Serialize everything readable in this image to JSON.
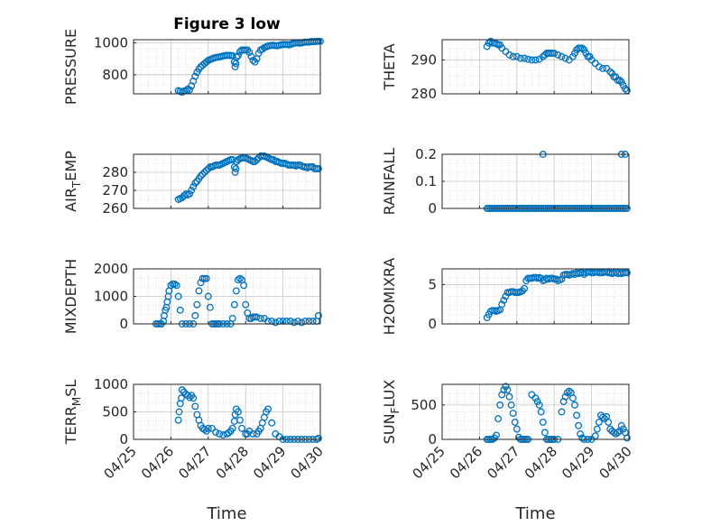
{
  "figure_title": "Figure 3 low",
  "marker_color": "#0072bd",
  "x_tick_labels": [
    "04/25",
    "04/26",
    "04/27",
    "04/28",
    "04/29",
    "04/30"
  ],
  "xlabel": "Time",
  "chart_data": [
    {
      "type": "scatter",
      "title": "Figure 3 low",
      "ylabel": "PRESSURE",
      "xlim": [
        0,
        5
      ],
      "ylim": [
        680,
        1020
      ],
      "yticks": [
        800,
        1000
      ],
      "ytick_labels": [
        "800",
        "1000"
      ],
      "grid": true,
      "x": [
        1.2,
        1.25,
        1.3,
        1.35,
        1.4,
        1.45,
        1.5,
        1.55,
        1.6,
        1.65,
        1.7,
        1.75,
        1.8,
        1.85,
        1.9,
        1.95,
        2.0,
        2.05,
        2.1,
        2.15,
        2.2,
        2.25,
        2.3,
        2.35,
        2.4,
        2.45,
        2.5,
        2.55,
        2.6,
        2.65,
        2.7,
        2.72,
        2.74,
        2.76,
        2.8,
        2.85,
        2.9,
        2.95,
        3.0,
        3.05,
        3.1,
        3.15,
        3.2,
        3.25,
        3.3,
        3.35,
        3.4,
        3.45,
        3.5,
        3.55,
        3.6,
        3.65,
        3.7,
        3.75,
        3.8,
        3.85,
        3.9,
        3.95,
        4.0,
        4.05,
        4.1,
        4.15,
        4.2,
        4.25,
        4.3,
        4.35,
        4.4,
        4.45,
        4.5,
        4.55,
        4.6,
        4.65,
        4.7,
        4.75,
        4.8,
        4.85,
        4.9,
        4.95,
        5.0
      ],
      "y": [
        700,
        695,
        690,
        698,
        700,
        710,
        705,
        730,
        760,
        790,
        815,
        835,
        850,
        860,
        870,
        880,
        890,
        895,
        900,
        905,
        908,
        910,
        912,
        914,
        918,
        920,
        922,
        922,
        921,
        920,
        880,
        850,
        870,
        910,
        920,
        945,
        955,
        955,
        955,
        955,
        940,
        915,
        890,
        880,
        900,
        935,
        955,
        960,
        970,
        975,
        980,
        983,
        985,
        985,
        983,
        982,
        985,
        988,
        990,
        990,
        990,
        988,
        990,
        995,
        998,
        1000,
        1000,
        998,
        1000,
        1003,
        1005,
        1005,
        1005,
        1008,
        1008,
        1008,
        1010,
        1010,
        1010
      ]
    },
    {
      "type": "scatter",
      "ylabel": "THETA",
      "xlim": [
        0,
        5
      ],
      "ylim": [
        280,
        296
      ],
      "yticks": [
        280,
        290
      ],
      "ytick_labels": [
        "280",
        "290"
      ],
      "grid": true,
      "x": [
        1.2,
        1.25,
        1.3,
        1.35,
        1.4,
        1.45,
        1.5,
        1.55,
        1.6,
        1.7,
        1.8,
        1.9,
        2.0,
        2.1,
        2.2,
        2.3,
        2.4,
        2.5,
        2.6,
        2.7,
        2.75,
        2.8,
        2.85,
        2.9,
        2.95,
        3.0,
        3.1,
        3.2,
        3.3,
        3.4,
        3.5,
        3.55,
        3.6,
        3.65,
        3.7,
        3.75,
        3.8,
        3.85,
        3.9,
        3.95,
        4.0,
        4.1,
        4.2,
        4.3,
        4.4,
        4.5,
        4.55,
        4.6,
        4.65,
        4.7,
        4.75,
        4.8,
        4.85,
        4.9,
        4.95
      ],
      "y": [
        294,
        295,
        295.5,
        295,
        295,
        294.8,
        294.5,
        294.5,
        293.5,
        292.5,
        291.5,
        291,
        291,
        290.5,
        290.5,
        290.2,
        290,
        290,
        290.2,
        291,
        291.5,
        292,
        292,
        292,
        292,
        292,
        291.5,
        291,
        290.5,
        290,
        291,
        292,
        293,
        293.5,
        293.5,
        293.5,
        293,
        292,
        291,
        291,
        290,
        289,
        288,
        287.5,
        287.5,
        286.5,
        286,
        285,
        285,
        284,
        284,
        283.5,
        282.5,
        281.5,
        281
      ]
    },
    {
      "type": "scatter",
      "ylabel": "AIR_TEMP",
      "ylabel_main": "AIR",
      "ylabel_sub": "T",
      "ylabel_rest": "EMP",
      "xlim": [
        0,
        5
      ],
      "ylim": [
        260,
        290
      ],
      "yticks": [
        260,
        270,
        280
      ],
      "ytick_labels": [
        "260",
        "270",
        "280"
      ],
      "grid": true,
      "x": [
        1.2,
        1.25,
        1.3,
        1.35,
        1.4,
        1.45,
        1.5,
        1.55,
        1.6,
        1.65,
        1.7,
        1.75,
        1.8,
        1.85,
        1.9,
        1.95,
        2.0,
        2.05,
        2.1,
        2.15,
        2.2,
        2.25,
        2.3,
        2.35,
        2.4,
        2.45,
        2.5,
        2.55,
        2.6,
        2.65,
        2.7,
        2.72,
        2.74,
        2.76,
        2.8,
        2.85,
        2.9,
        2.95,
        3.0,
        3.05,
        3.1,
        3.15,
        3.2,
        3.25,
        3.3,
        3.35,
        3.4,
        3.45,
        3.5,
        3.55,
        3.6,
        3.65,
        3.7,
        3.75,
        3.8,
        3.85,
        3.9,
        3.95,
        4.0,
        4.05,
        4.1,
        4.15,
        4.2,
        4.25,
        4.3,
        4.35,
        4.4,
        4.45,
        4.5,
        4.55,
        4.6,
        4.65,
        4.7,
        4.75,
        4.8,
        4.85,
        4.9,
        4.95
      ],
      "y": [
        265,
        265.5,
        266,
        267,
        268,
        267.5,
        268,
        270,
        272,
        274,
        275,
        276.5,
        278,
        279,
        280,
        281,
        282,
        283,
        283,
        283.5,
        284,
        284,
        284,
        284.5,
        285,
        285.5,
        286,
        286.5,
        287,
        287,
        283,
        280,
        282,
        286,
        287,
        287.5,
        288,
        288,
        288,
        287.5,
        287,
        286.5,
        286,
        286,
        287,
        288,
        289,
        289,
        289,
        288.5,
        288,
        287.5,
        287,
        287,
        286,
        286,
        285.5,
        285,
        285,
        285,
        284.5,
        284,
        284,
        284,
        284,
        283.5,
        284,
        284,
        283.5,
        283,
        283,
        282.5,
        283,
        283,
        283,
        282,
        282,
        282
      ]
    },
    {
      "type": "scatter",
      "ylabel": "RAINFALL",
      "xlim": [
        0,
        5
      ],
      "ylim": [
        0,
        0.2
      ],
      "yticks": [
        0,
        0.1,
        0.2
      ],
      "ytick_labels": [
        "0",
        "0.1",
        "0.2"
      ],
      "grid": true,
      "x": [
        1.2,
        1.25,
        1.3,
        1.35,
        1.4,
        1.45,
        1.5,
        1.55,
        1.6,
        1.65,
        1.7,
        1.75,
        1.8,
        1.85,
        1.9,
        1.95,
        2.0,
        2.05,
        2.1,
        2.15,
        2.2,
        2.25,
        2.3,
        2.35,
        2.4,
        2.45,
        2.5,
        2.55,
        2.6,
        2.65,
        2.7,
        2.75,
        2.8,
        2.85,
        2.9,
        2.95,
        3.0,
        3.05,
        3.1,
        3.15,
        3.2,
        3.25,
        3.3,
        3.35,
        3.4,
        3.45,
        3.5,
        3.55,
        3.6,
        3.65,
        3.7,
        3.75,
        3.8,
        3.85,
        3.9,
        3.95,
        4.0,
        4.05,
        4.1,
        4.15,
        4.2,
        4.25,
        4.3,
        4.35,
        4.4,
        4.45,
        4.5,
        4.55,
        4.6,
        4.65,
        4.7,
        4.75,
        4.8,
        4.85,
        4.9,
        4.95,
        2.7,
        4.8,
        4.9
      ],
      "y": [
        0,
        0,
        0,
        0,
        0,
        0,
        0,
        0,
        0,
        0,
        0,
        0,
        0,
        0,
        0,
        0,
        0,
        0,
        0,
        0,
        0,
        0,
        0,
        0,
        0,
        0,
        0,
        0,
        0,
        0,
        0,
        0,
        0,
        0,
        0,
        0,
        0,
        0,
        0,
        0,
        0,
        0,
        0,
        0,
        0,
        0,
        0,
        0,
        0,
        0,
        0,
        0,
        0,
        0,
        0,
        0,
        0,
        0,
        0,
        0,
        0,
        0,
        0,
        0,
        0,
        0,
        0,
        0,
        0,
        0,
        0,
        0,
        0,
        0,
        0,
        0,
        0.2,
        0.2,
        0.2
      ]
    },
    {
      "type": "scatter",
      "ylabel": "MIXDEPTH",
      "xlim": [
        0,
        5
      ],
      "ylim": [
        0,
        2000
      ],
      "yticks": [
        0,
        1000,
        2000
      ],
      "ytick_labels": [
        "0",
        "1000",
        "2000"
      ],
      "grid": true,
      "x": [
        0.6,
        0.65,
        0.7,
        0.75,
        0.8,
        0.82,
        0.85,
        0.88,
        0.9,
        0.93,
        0.95,
        1.0,
        1.05,
        1.1,
        1.15,
        1.2,
        1.25,
        1.3,
        1.4,
        1.5,
        1.6,
        1.65,
        1.7,
        1.75,
        1.8,
        1.85,
        1.9,
        1.95,
        2.0,
        2.05,
        2.1,
        2.15,
        2.2,
        2.25,
        2.3,
        2.4,
        2.5,
        2.6,
        2.65,
        2.7,
        2.75,
        2.8,
        2.85,
        2.9,
        2.95,
        3.0,
        3.05,
        3.1,
        3.15,
        3.2,
        3.25,
        3.3,
        3.4,
        3.5,
        3.6,
        3.7,
        3.8,
        3.9,
        4.0,
        4.1,
        4.2,
        4.3,
        4.4,
        4.5,
        4.6,
        4.7,
        4.8,
        4.9,
        4.95
      ],
      "y": [
        0,
        0,
        0,
        0,
        100,
        300,
        500,
        600,
        800,
        1000,
        1200,
        1400,
        1450,
        1450,
        1400,
        1000,
        500,
        0,
        0,
        0,
        0,
        300,
        700,
        1200,
        1500,
        1650,
        1650,
        1650,
        1000,
        600,
        0,
        0,
        0,
        0,
        0,
        0,
        0,
        0,
        200,
        700,
        1200,
        1600,
        1650,
        1600,
        1400,
        700,
        400,
        200,
        200,
        250,
        250,
        250,
        200,
        200,
        100,
        100,
        50,
        100,
        100,
        100,
        100,
        50,
        100,
        50,
        100,
        100,
        100,
        100,
        300
      ]
    },
    {
      "type": "scatter",
      "ylabel": "H2OMIXRA",
      "xlim": [
        0,
        5
      ],
      "ylim": [
        0,
        7
      ],
      "yticks": [
        0,
        5
      ],
      "ytick_labels": [
        "0",
        "5"
      ],
      "grid": true,
      "x": [
        1.2,
        1.25,
        1.3,
        1.35,
        1.4,
        1.45,
        1.5,
        1.55,
        1.6,
        1.65,
        1.7,
        1.75,
        1.8,
        1.85,
        1.9,
        1.95,
        2.0,
        2.05,
        2.1,
        2.15,
        2.2,
        2.25,
        2.3,
        2.35,
        2.4,
        2.45,
        2.5,
        2.55,
        2.6,
        2.65,
        2.7,
        2.75,
        2.8,
        2.85,
        2.9,
        2.95,
        3.0,
        3.05,
        3.1,
        3.15,
        3.2,
        3.25,
        3.3,
        3.35,
        3.4,
        3.45,
        3.5,
        3.55,
        3.6,
        3.65,
        3.7,
        3.75,
        3.8,
        3.85,
        3.9,
        3.95,
        4.0,
        4.05,
        4.1,
        4.15,
        4.2,
        4.25,
        4.3,
        4.35,
        4.4,
        4.45,
        4.5,
        4.55,
        4.6,
        4.65,
        4.7,
        4.75,
        4.8,
        4.85,
        4.9,
        4.95
      ],
      "y": [
        0.8,
        1.2,
        1.6,
        1.7,
        1.7,
        1.6,
        1.7,
        1.8,
        2.5,
        3.0,
        3.5,
        4.0,
        4.0,
        4.1,
        4.1,
        4.0,
        4.0,
        4.0,
        4.1,
        4.2,
        4.5,
        5.5,
        5.8,
        5.8,
        5.8,
        5.9,
        5.9,
        5.8,
        5.9,
        5.8,
        5.5,
        5.6,
        5.8,
        5.7,
        5.8,
        5.8,
        5.7,
        5.7,
        5.5,
        5.6,
        5.7,
        6.2,
        6.3,
        6.3,
        6.2,
        6.3,
        6.4,
        6.3,
        6.5,
        6.4,
        6.5,
        6.5,
        6.3,
        6.5,
        6.6,
        6.6,
        6.5,
        6.5,
        6.6,
        6.6,
        6.5,
        6.5,
        6.5,
        6.6,
        6.6,
        6.5,
        6.5,
        6.4,
        6.5,
        6.6,
        6.4,
        6.5,
        6.4,
        6.5,
        6.5,
        6.5
      ]
    },
    {
      "type": "scatter",
      "ylabel": "TERR_MSL",
      "ylabel_main": "TERR",
      "ylabel_sub": "M",
      "ylabel_rest": "SL",
      "xlim": [
        0,
        5
      ],
      "ylim": [
        0,
        1000
      ],
      "yticks": [
        0,
        500,
        1000
      ],
      "ytick_labels": [
        "0",
        "500",
        "1000"
      ],
      "grid": true,
      "x": [
        1.2,
        1.22,
        1.25,
        1.28,
        1.3,
        1.35,
        1.4,
        1.45,
        1.5,
        1.55,
        1.6,
        1.65,
        1.7,
        1.75,
        1.8,
        1.85,
        1.9,
        1.95,
        2.0,
        2.1,
        2.2,
        2.3,
        2.4,
        2.5,
        2.55,
        2.6,
        2.65,
        2.7,
        2.72,
        2.75,
        2.8,
        2.85,
        2.9,
        3.0,
        3.05,
        3.1,
        3.2,
        3.3,
        3.35,
        3.4,
        3.45,
        3.5,
        3.55,
        3.6,
        3.7,
        3.8,
        3.9,
        4.0,
        4.1,
        4.2,
        4.3,
        4.4,
        4.5,
        4.6,
        4.7,
        4.8,
        4.9,
        4.95
      ],
      "y": [
        350,
        500,
        650,
        750,
        900,
        860,
        820,
        800,
        760,
        800,
        750,
        600,
        450,
        350,
        250,
        200,
        180,
        150,
        200,
        200,
        130,
        100,
        80,
        100,
        120,
        150,
        200,
        330,
        450,
        550,
        500,
        350,
        200,
        100,
        100,
        150,
        100,
        100,
        150,
        200,
        300,
        400,
        500,
        550,
        300,
        100,
        50,
        0,
        0,
        0,
        0,
        0,
        0,
        0,
        0,
        0,
        0,
        20
      ]
    },
    {
      "type": "scatter",
      "ylabel": "SUN_FLUX",
      "ylabel_main": "SUN",
      "ylabel_sub": "F",
      "ylabel_rest": "LUX",
      "xlim": [
        0,
        5
      ],
      "ylim": [
        0,
        800
      ],
      "yticks": [
        0,
        500
      ],
      "ytick_labels": [
        "0",
        "500"
      ],
      "grid": true,
      "x": [
        1.2,
        1.25,
        1.3,
        1.35,
        1.4,
        1.45,
        1.5,
        1.55,
        1.6,
        1.65,
        1.7,
        1.75,
        1.8,
        1.85,
        1.9,
        1.95,
        2.0,
        2.05,
        2.1,
        2.15,
        2.2,
        2.25,
        2.3,
        2.4,
        2.5,
        2.55,
        2.6,
        2.65,
        2.7,
        2.75,
        2.8,
        2.85,
        2.9,
        2.95,
        3.0,
        3.1,
        3.2,
        3.25,
        3.3,
        3.35,
        3.4,
        3.45,
        3.5,
        3.55,
        3.6,
        3.65,
        3.7,
        3.75,
        3.8,
        3.9,
        4.0,
        4.1,
        4.15,
        4.2,
        4.25,
        4.3,
        4.35,
        4.4,
        4.45,
        4.5,
        4.55,
        4.6,
        4.65,
        4.7,
        4.75,
        4.8,
        4.85,
        4.9,
        4.95
      ],
      "y": [
        0,
        0,
        0,
        0,
        20,
        60,
        300,
        500,
        650,
        720,
        770,
        720,
        620,
        500,
        380,
        250,
        150,
        30,
        0,
        0,
        0,
        0,
        0,
        650,
        600,
        550,
        500,
        400,
        250,
        100,
        0,
        0,
        0,
        0,
        0,
        0,
        400,
        550,
        620,
        680,
        700,
        680,
        600,
        500,
        350,
        200,
        80,
        20,
        0,
        0,
        0,
        50,
        150,
        250,
        350,
        320,
        300,
        330,
        250,
        150,
        120,
        100,
        80,
        100,
        120,
        200,
        150,
        100,
        20
      ]
    }
  ]
}
